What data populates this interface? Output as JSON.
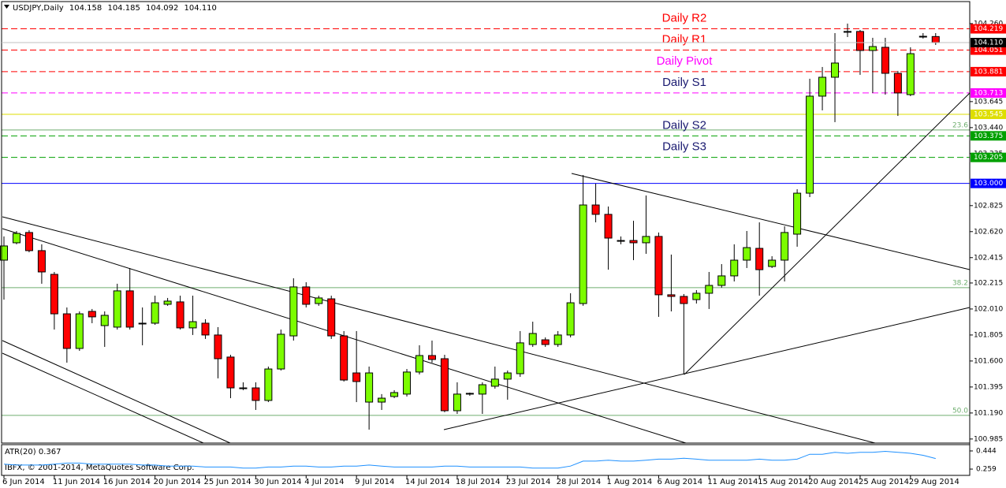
{
  "chart_data": {
    "type": "candlestick",
    "title": "USDJPY,Daily",
    "header_values": [
      104.158,
      104.185,
      104.092,
      104.11
    ],
    "header_labels": [
      "104.158",
      "104.185",
      "104.092",
      "104.110"
    ],
    "categories": [
      "6 Jun 2014",
      null,
      null,
      null,
      "11 Jun 2014",
      null,
      null,
      null,
      "16 Jun 2014",
      null,
      null,
      null,
      "20 Jun 2014",
      null,
      null,
      null,
      "25 Jun 2014",
      null,
      null,
      null,
      "30 Jun 2014",
      null,
      null,
      null,
      "4 Jul 2014",
      null,
      null,
      null,
      "9 Jul 2014",
      null,
      null,
      null,
      "14 Jul 2014",
      null,
      null,
      null,
      "18 Jul 2014",
      null,
      null,
      null,
      "23 Jul 2014",
      null,
      null,
      null,
      "28 Jul 2014",
      null,
      null,
      null,
      "1 Aug 2014",
      null,
      null,
      null,
      "6 Aug 2014",
      null,
      null,
      null,
      "11 Aug 2014",
      null,
      null,
      null,
      "15 Aug 2014",
      null,
      null,
      null,
      "20 Aug 2014",
      null,
      null,
      null,
      "25 Aug 2014",
      null,
      null,
      null,
      "29 Aug 2014",
      null,
      null
    ],
    "open": [
      102.395,
      102.532,
      102.613,
      102.47,
      102.283,
      101.972,
      101.699,
      101.991,
      101.879,
      101.867,
      102.153,
      101.898,
      101.898,
      102.047,
      102.066,
      101.861,
      101.898,
      101.805,
      101.631,
      101.388,
      101.388,
      101.289,
      101.537,
      101.798,
      102.184,
      102.053,
      102.09,
      101.798,
      101.506,
      101.276,
      101.276,
      101.32,
      101.339,
      101.513,
      101.643,
      101.618,
      101.208,
      101.339,
      101.339,
      101.401,
      101.457,
      101.5,
      101.73,
      101.767,
      101.73,
      101.805,
      102.053,
      102.83,
      102.756,
      102.544,
      102.55,
      102.532,
      102.582,
      102.122,
      102.109,
      102.084,
      102.134,
      102.196,
      102.271,
      102.395,
      102.488,
      102.345,
      102.395,
      102.6,
      102.923,
      103.688,
      103.837,
      104.198,
      104.198,
      104.048,
      104.073,
      103.868,
      103.7,
      104.154,
      104.158
    ],
    "high": [
      102.582,
      102.625,
      102.631,
      102.52,
      102.302,
      102.022,
      101.991,
      102.01,
      101.991,
      102.209,
      102.333,
      102.022,
      102.115,
      102.097,
      102.115,
      102.115,
      101.929,
      101.867,
      101.649,
      101.432,
      101.432,
      101.556,
      101.848,
      102.252,
      102.221,
      102.115,
      102.115,
      101.836,
      101.836,
      101.556,
      101.339,
      101.37,
      101.537,
      101.724,
      101.761,
      101.649,
      101.432,
      101.351,
      101.432,
      101.556,
      101.525,
      101.836,
      101.91,
      101.786,
      101.836,
      102.134,
      103.066,
      102.998,
      102.818,
      102.582,
      102.706,
      102.905,
      102.613,
      102.439,
      102.128,
      102.159,
      102.302,
      102.364,
      102.52,
      102.625,
      102.693,
      102.426,
      102.662,
      102.954,
      103.825,
      103.918,
      104.185,
      104.26,
      104.21,
      104.148,
      104.148,
      103.887,
      104.073,
      104.185,
      104.185
    ],
    "low": [
      102.084,
      102.52,
      102.457,
      102.209,
      101.848,
      101.587,
      101.68,
      101.898,
      101.711,
      101.848,
      101.848,
      101.724,
      101.885,
      102.035,
      101.848,
      101.805,
      101.774,
      101.463,
      101.307,
      101.37,
      101.214,
      101.276,
      101.525,
      101.761,
      102.022,
      102.035,
      101.774,
      101.438,
      101.276,
      101.059,
      101.214,
      101.307,
      101.32,
      101.494,
      101.587,
      101.196,
      101.183,
      101.326,
      101.183,
      101.382,
      101.295,
      101.475,
      101.711,
      101.711,
      101.711,
      101.786,
      102.035,
      102.693,
      102.32,
      102.52,
      102.395,
      102.445,
      101.948,
      101.991,
      101.494,
      102.053,
      102.01,
      102.178,
      102.227,
      102.333,
      102.115,
      102.333,
      102.227,
      102.501,
      102.892,
      103.576,
      103.483,
      104.154,
      103.856,
      103.713,
      103.7,
      103.532,
      103.688,
      104.142,
      104.092
    ],
    "close": [
      102.507,
      102.606,
      102.47,
      102.302,
      101.972,
      101.699,
      101.972,
      101.948,
      101.96,
      102.153,
      101.867,
      101.892,
      102.059,
      102.072,
      101.861,
      101.91,
      101.805,
      101.618,
      101.388,
      101.382,
      101.289,
      101.537,
      101.811,
      102.184,
      102.047,
      102.097,
      101.798,
      101.45,
      101.438,
      101.506,
      101.307,
      101.351,
      101.513,
      101.643,
      101.612,
      101.208,
      101.339,
      101.345,
      101.413,
      101.457,
      101.506,
      101.743,
      101.817,
      101.73,
      101.805,
      102.059,
      102.83,
      102.756,
      102.569,
      102.55,
      102.532,
      102.582,
      102.122,
      102.109,
      102.053,
      102.134,
      102.196,
      102.271,
      102.395,
      102.494,
      102.32,
      102.395,
      102.613,
      102.923,
      103.688,
      103.837,
      103.949,
      104.192,
      104.048,
      104.079,
      103.868,
      103.713,
      104.023,
      104.16,
      104.11
    ],
    "up_color": "#7cfc00",
    "down_color": "#ff0000",
    "ylim": [
      100.953,
      104.446
    ],
    "yticks": [
      {
        "value": 104.26,
        "label": "104.260"
      },
      103.645,
      {
        "value": 103.44,
        "label": "103.440"
      },
      103.235,
      102.825,
      {
        "value": 102.62,
        "label": "102.620"
      },
      102.415,
      102.215,
      {
        "value": 102.01,
        "label": "102.010"
      },
      101.805,
      {
        "value": 101.6,
        "label": "101.600"
      },
      101.395,
      {
        "value": 101.19,
        "label": "101.190"
      },
      100.985
    ],
    "bid": {
      "value": 104.11,
      "label": "104.110"
    },
    "levels": [
      {
        "name": "Daily R2",
        "value": 104.219,
        "color": "#ff0000",
        "name_color": "#ff0000",
        "style": "dash"
      },
      {
        "name": "Daily R1",
        "value": 104.051,
        "color": "#ff0000",
        "name_color": "#ff0000",
        "style": "dash"
      },
      {
        "name": "Daily Pivot",
        "value": 103.881,
        "color": "#ff0000",
        "name_color": "#ff00ff",
        "style": "dash"
      },
      {
        "name": "Daily S1",
        "value": 103.713,
        "color": "#ff00ff",
        "name_color": "#191970",
        "style": "dash"
      },
      {
        "value": 103.545,
        "color": "#dede00",
        "style": "solid"
      },
      {
        "name": "Daily S2",
        "value": 103.375,
        "color": "#00a000",
        "name_color": "#191970",
        "style": "dash"
      },
      {
        "name": "Daily S3",
        "value": 103.205,
        "color": "#00a000",
        "name_color": "#191970",
        "style": "dash"
      },
      {
        "value": 103,
        "label": "103.000",
        "color": "#0000ff",
        "style": "solid"
      }
    ],
    "fib": {
      "values": [
        23.6,
        38.2,
        50
      ],
      "value_labels": [
        "23.6",
        "38.2",
        "50.0"
      ],
      "prices": [
        103.421,
        102.178,
        101.171
      ],
      "color": "#6fae6f"
    },
    "atr": {
      "type": "line",
      "title": "ATR(20) 0.367",
      "color": "#1e90ff",
      "values": [
        0.31,
        0.3,
        0.3,
        0.3,
        0.31,
        0.32,
        0.32,
        0.31,
        0.31,
        0.31,
        0.31,
        0.3,
        0.3,
        0.29,
        0.29,
        0.29,
        0.28,
        0.28,
        0.28,
        0.27,
        0.27,
        0.28,
        0.28,
        0.29,
        0.29,
        0.28,
        0.28,
        0.29,
        0.29,
        0.3,
        0.29,
        0.28,
        0.28,
        0.28,
        0.28,
        0.29,
        0.29,
        0.28,
        0.28,
        0.28,
        0.28,
        0.28,
        0.27,
        0.27,
        0.27,
        0.29,
        0.34,
        0.34,
        0.35,
        0.34,
        0.34,
        0.35,
        0.36,
        0.36,
        0.37,
        0.36,
        0.35,
        0.35,
        0.35,
        0.35,
        0.36,
        0.35,
        0.35,
        0.36,
        0.41,
        0.41,
        0.43,
        0.42,
        0.43,
        0.43,
        0.44,
        0.43,
        0.42,
        0.4,
        0.367
      ],
      "ylim": [
        0.203,
        0.5
      ],
      "yticks": [
        0.444,
        0.259
      ]
    },
    "footer": "IBFX, © 2001-2014, MetaQuotes Software Corp."
  }
}
